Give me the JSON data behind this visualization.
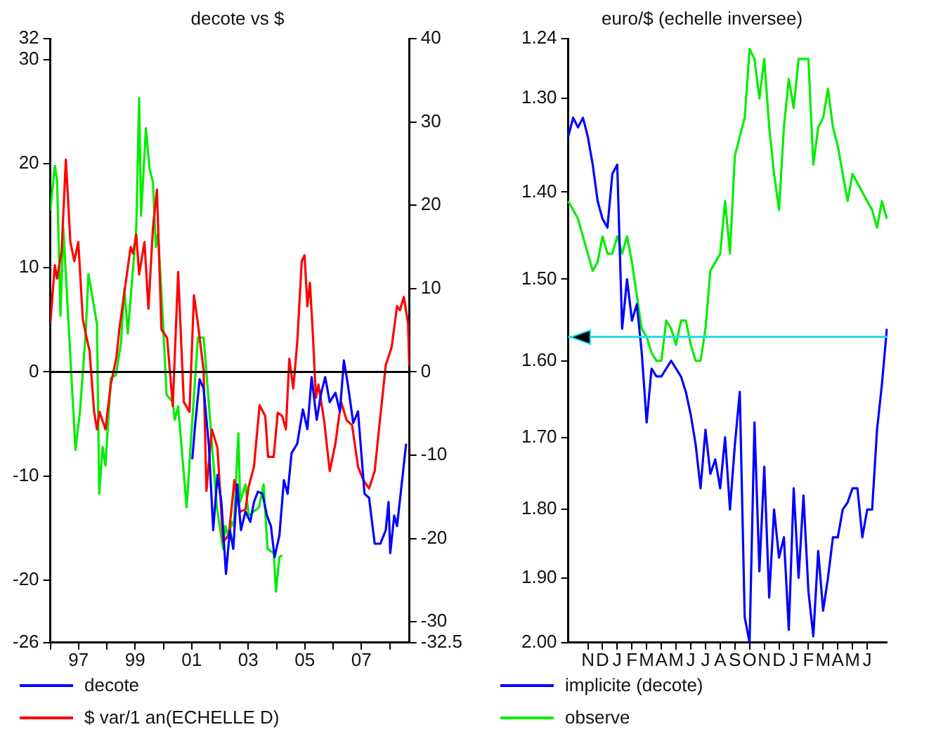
{
  "chart_data": [
    {
      "type": "line",
      "title": "decote vs $",
      "legend": "bottom",
      "marker": "none",
      "grid": false,
      "xlim": [
        1996,
        2008.7
      ],
      "xticks": [
        {
          "value": 1996,
          "label": null
        },
        {
          "value": 1997,
          "label": "97"
        },
        {
          "value": 1998,
          "label": null
        },
        {
          "value": 1999,
          "label": "99"
        },
        {
          "value": 2000,
          "label": null
        },
        {
          "value": 2001,
          "label": "01"
        },
        {
          "value": 2002,
          "label": null
        },
        {
          "value": 2003,
          "label": "03"
        },
        {
          "value": 2004,
          "label": null
        },
        {
          "value": 2005,
          "label": "05"
        },
        {
          "value": 2006,
          "label": null
        },
        {
          "value": 2007,
          "label": "07"
        },
        {
          "value": 2008,
          "label": null
        }
      ],
      "ylim": [
        -26,
        32
      ],
      "yticks": [
        -26,
        -20,
        -10,
        0,
        10,
        20,
        30,
        32
      ],
      "y2lim": [
        -32.5,
        40
      ],
      "y2ticks": [
        -32.5,
        -30,
        -20,
        -10,
        0,
        10,
        20,
        30,
        40
      ],
      "ref_lines": [
        {
          "axis": "y",
          "value": 0
        }
      ],
      "series": [
        {
          "name": "decote",
          "color": "#0000ff",
          "x": [
            2001.02,
            2001.12,
            2001.28,
            2001.42,
            2001.61,
            2001.76,
            2001.91,
            2002.05,
            2002.21,
            2002.35,
            2002.47,
            2002.61,
            2002.74,
            2002.9,
            2003.07,
            2003.2,
            2003.34,
            2003.5,
            2003.66,
            2003.8,
            2003.93,
            2004.1,
            2004.26,
            2004.39,
            2004.53,
            2004.73,
            2004.93,
            2005.09,
            2005.24,
            2005.42,
            2005.58,
            2005.72,
            2005.88,
            2006.08,
            2006.24,
            2006.38,
            2006.52,
            2006.71,
            2006.88,
            2007.11,
            2007.27,
            2007.47,
            2007.67,
            2007.86,
            2007.96,
            2008.02,
            2008.16,
            2008.26,
            2008.46,
            2008.58
          ],
          "values": [
            -8.4,
            -5.1,
            -0.7,
            -1.6,
            -7.2,
            -15.2,
            -9.9,
            -12.5,
            -19.4,
            -15.2,
            -17,
            -10.8,
            -15.2,
            -13.4,
            -14.4,
            -12.5,
            -11.5,
            -11.7,
            -13.8,
            -14.8,
            -17.8,
            -15.7,
            -10.4,
            -11.7,
            -7.8,
            -6.9,
            -3.6,
            -5.5,
            -0.5,
            -4.6,
            -2,
            -0.5,
            -2.9,
            -2,
            -3.8,
            1.1,
            -1.2,
            -4.9,
            -3.8,
            -11.7,
            -12.1,
            -16.5,
            -16.5,
            -15.2,
            -12.5,
            -17.4,
            -13.8,
            -14.8,
            -9.9,
            -6.9
          ]
        },
        {
          "name": "$ var/1 an(ECHELLE D)",
          "color": "#ff0000",
          "axis": "y2",
          "x": [
            1996,
            1996.16,
            1996.24,
            1996.4,
            1996.55,
            1996.71,
            1996.85,
            1996.99,
            1997.15,
            1997.25,
            1997.39,
            1997.55,
            1997.65,
            1997.74,
            1997.95,
            1998.14,
            1998.34,
            1998.44,
            1998.84,
            1998.93,
            1999.04,
            1999.14,
            1999.33,
            1999.47,
            1999.63,
            1999.77,
            1999.93,
            2000.13,
            2000.33,
            2000.52,
            2000.72,
            2000.92,
            2001.08,
            2001.22,
            2001.42,
            2001.52,
            2001.71,
            2001.91,
            2002.11,
            2002.31,
            2002.51,
            2002.71,
            2002.9,
            2003.01,
            2003.2,
            2003.4,
            2003.6,
            2003.7,
            2003.9,
            2004.04,
            2004.2,
            2004.33,
            2004.45,
            2004.59,
            2004.73,
            2004.89,
            2004.99,
            2005.09,
            2005.18,
            2005.29,
            2005.39,
            2005.48,
            2005.68,
            2005.88,
            2006.08,
            2006.28,
            2006.48,
            2006.67,
            2006.88,
            2007.07,
            2007.27,
            2007.47,
            2007.67,
            2007.86,
            2008.07,
            2008.26,
            2008.36,
            2008.5,
            2008.65,
            2008.69
          ],
          "values": [
            5.8,
            12.8,
            11.2,
            14.5,
            25.5,
            15.6,
            13.3,
            15.6,
            6.3,
            4.6,
            2.5,
            -4.8,
            -6.9,
            -4.8,
            -6.9,
            -1.5,
            1.8,
            5.1,
            15,
            14.2,
            16.5,
            11.7,
            15.6,
            7.6,
            17.3,
            21.9,
            5.1,
            4.1,
            -4.1,
            12,
            -3.6,
            -4.8,
            9.2,
            5.8,
            0.2,
            -14.3,
            -6.9,
            -9.1,
            -20.4,
            -19.6,
            -13,
            -16.8,
            -16.5,
            -13.8,
            -11.4,
            -4,
            -5.3,
            -10.2,
            -10.2,
            -4.9,
            -5.3,
            -6.9,
            1.6,
            -2,
            3.5,
            13.3,
            14,
            7.9,
            10.7,
            4.1,
            -3.1,
            -1.5,
            -5.8,
            -11.9,
            -8.6,
            -3.6,
            -5.8,
            -6.4,
            -11.4,
            -13,
            -14,
            -11.9,
            -5.3,
            0.8,
            3,
            7.9,
            7.4,
            9,
            5.8,
            0.8
          ]
        },
        {
          "color": "#00ee00",
          "x": [
            1996,
            1996.16,
            1996.24,
            1996.36,
            1996.46,
            1996.89,
            1997.05,
            1997.25,
            1997.35,
            1997.65,
            1997.73,
            1997.85,
            1997.95,
            1998.14,
            1998.32,
            1998.5,
            1998.62,
            1998.74,
            1999.04,
            1999.14,
            1999.21,
            1999.38,
            1999.51,
            1999.63,
            1999.73,
            1999.81,
            1999.99,
            2000.11,
            2000.33,
            2000.4,
            2000.52,
            2000.82,
            2001,
            2001.22,
            2001.42,
            2001.52,
            2001.71,
            2001.89,
            2002.11,
            2002.19,
            2002.31,
            2002.41,
            2002.49,
            2002.65,
            2002.71,
            2002.9,
            2003.01,
            2003.2,
            2003.38,
            2003.54,
            2003.68,
            2003.9,
            2003.98,
            2004.1,
            2004.2
          ],
          "values": [
            15.5,
            19.8,
            18.4,
            5.4,
            13.8,
            -7.5,
            -3.8,
            3.7,
            9.4,
            4.6,
            -11.7,
            -7.2,
            -9,
            -0.6,
            -0.3,
            2.8,
            8,
            3.7,
            13.8,
            26.3,
            15,
            23.4,
            19.5,
            18.2,
            12,
            13.3,
            4.6,
            -2.2,
            -2.9,
            -4.6,
            -3.3,
            -13,
            -5.5,
            3.3,
            3.3,
            0,
            -6.8,
            -13,
            -17,
            -14.8,
            -16,
            -14.4,
            -14.8,
            -5.9,
            -12.5,
            -10.8,
            -13.8,
            -13.4,
            -13,
            -10.8,
            -17,
            -17.4,
            -21.1,
            -17.8,
            -17.6
          ]
        }
      ]
    },
    {
      "type": "line",
      "title": "euro/$ (echelle inversee)",
      "legend": "bottom",
      "marker": "none",
      "grid": false,
      "log": "y",
      "categories": [
        null,
        null,
        null,
        null,
        "N",
        null,
        null,
        "D",
        null,
        null,
        "J",
        null,
        null,
        "F",
        null,
        null,
        "M",
        null,
        null,
        "A",
        null,
        null,
        "M",
        null,
        null,
        "J",
        null,
        null,
        "J",
        null,
        null,
        "A",
        null,
        null,
        "S",
        null,
        null,
        "O",
        null,
        null,
        "N",
        null,
        null,
        "D",
        null,
        null,
        "J",
        null,
        null,
        "F",
        null,
        null,
        "M",
        null,
        null,
        "A",
        null,
        null,
        "M",
        null,
        null,
        "J",
        null,
        null,
        null,
        null
      ],
      "ylim": [
        2.0,
        1.24
      ],
      "yticks": [
        1.24,
        {
          "value": 1.3,
          "label": "1.30"
        },
        {
          "value": 1.4,
          "label": "1.40"
        },
        {
          "value": 1.5,
          "label": "1.50"
        },
        {
          "value": 1.6,
          "label": "1.60"
        },
        {
          "value": 1.7,
          "label": "1.70"
        },
        {
          "value": 1.8,
          "label": "1.80"
        },
        {
          "value": 1.9,
          "label": "1.90"
        },
        {
          "value": 2.0,
          "label": "2.00"
        }
      ],
      "ref_lines": [
        {
          "axis": "y",
          "value": 1.57,
          "color": "#22ddee"
        }
      ],
      "series": [
        {
          "name": "implicite (decote)",
          "color": "#0000ff",
          "values": [
            1.34,
            1.32,
            1.33,
            1.32,
            1.34,
            1.37,
            1.41,
            1.43,
            1.44,
            1.38,
            1.37,
            1.56,
            1.5,
            1.55,
            1.53,
            1.59,
            1.68,
            1.61,
            1.62,
            1.62,
            1.61,
            1.6,
            1.61,
            1.62,
            1.64,
            1.67,
            1.71,
            1.77,
            1.69,
            1.75,
            1.73,
            1.77,
            1.7,
            1.8,
            1.71,
            1.64,
            1.96,
            2.0,
            1.68,
            1.89,
            1.74,
            1.93,
            1.8,
            1.87,
            1.84,
            1.98,
            1.77,
            1.9,
            1.78,
            1.92,
            1.99,
            1.86,
            1.95,
            1.9,
            1.84,
            1.84,
            1.8,
            1.79,
            1.77,
            1.77,
            1.84,
            1.8,
            1.8,
            1.69,
            1.63,
            1.56
          ]
        },
        {
          "name": "observe",
          "color": "#00ee00",
          "values": [
            1.41,
            1.42,
            1.43,
            1.45,
            1.47,
            1.49,
            1.48,
            1.45,
            1.47,
            1.47,
            1.45,
            1.47,
            1.45,
            1.48,
            1.52,
            1.56,
            1.57,
            1.59,
            1.6,
            1.6,
            1.55,
            1.56,
            1.58,
            1.55,
            1.55,
            1.58,
            1.6,
            1.6,
            1.56,
            1.49,
            1.48,
            1.47,
            1.41,
            1.47,
            1.36,
            1.34,
            1.32,
            1.25,
            1.26,
            1.3,
            1.26,
            1.33,
            1.38,
            1.42,
            1.33,
            1.28,
            1.31,
            1.26,
            1.26,
            1.26,
            1.37,
            1.33,
            1.32,
            1.29,
            1.33,
            1.35,
            1.38,
            1.41,
            1.38,
            1.39,
            1.4,
            1.41,
            1.42,
            1.44,
            1.41,
            1.43
          ]
        }
      ]
    }
  ]
}
